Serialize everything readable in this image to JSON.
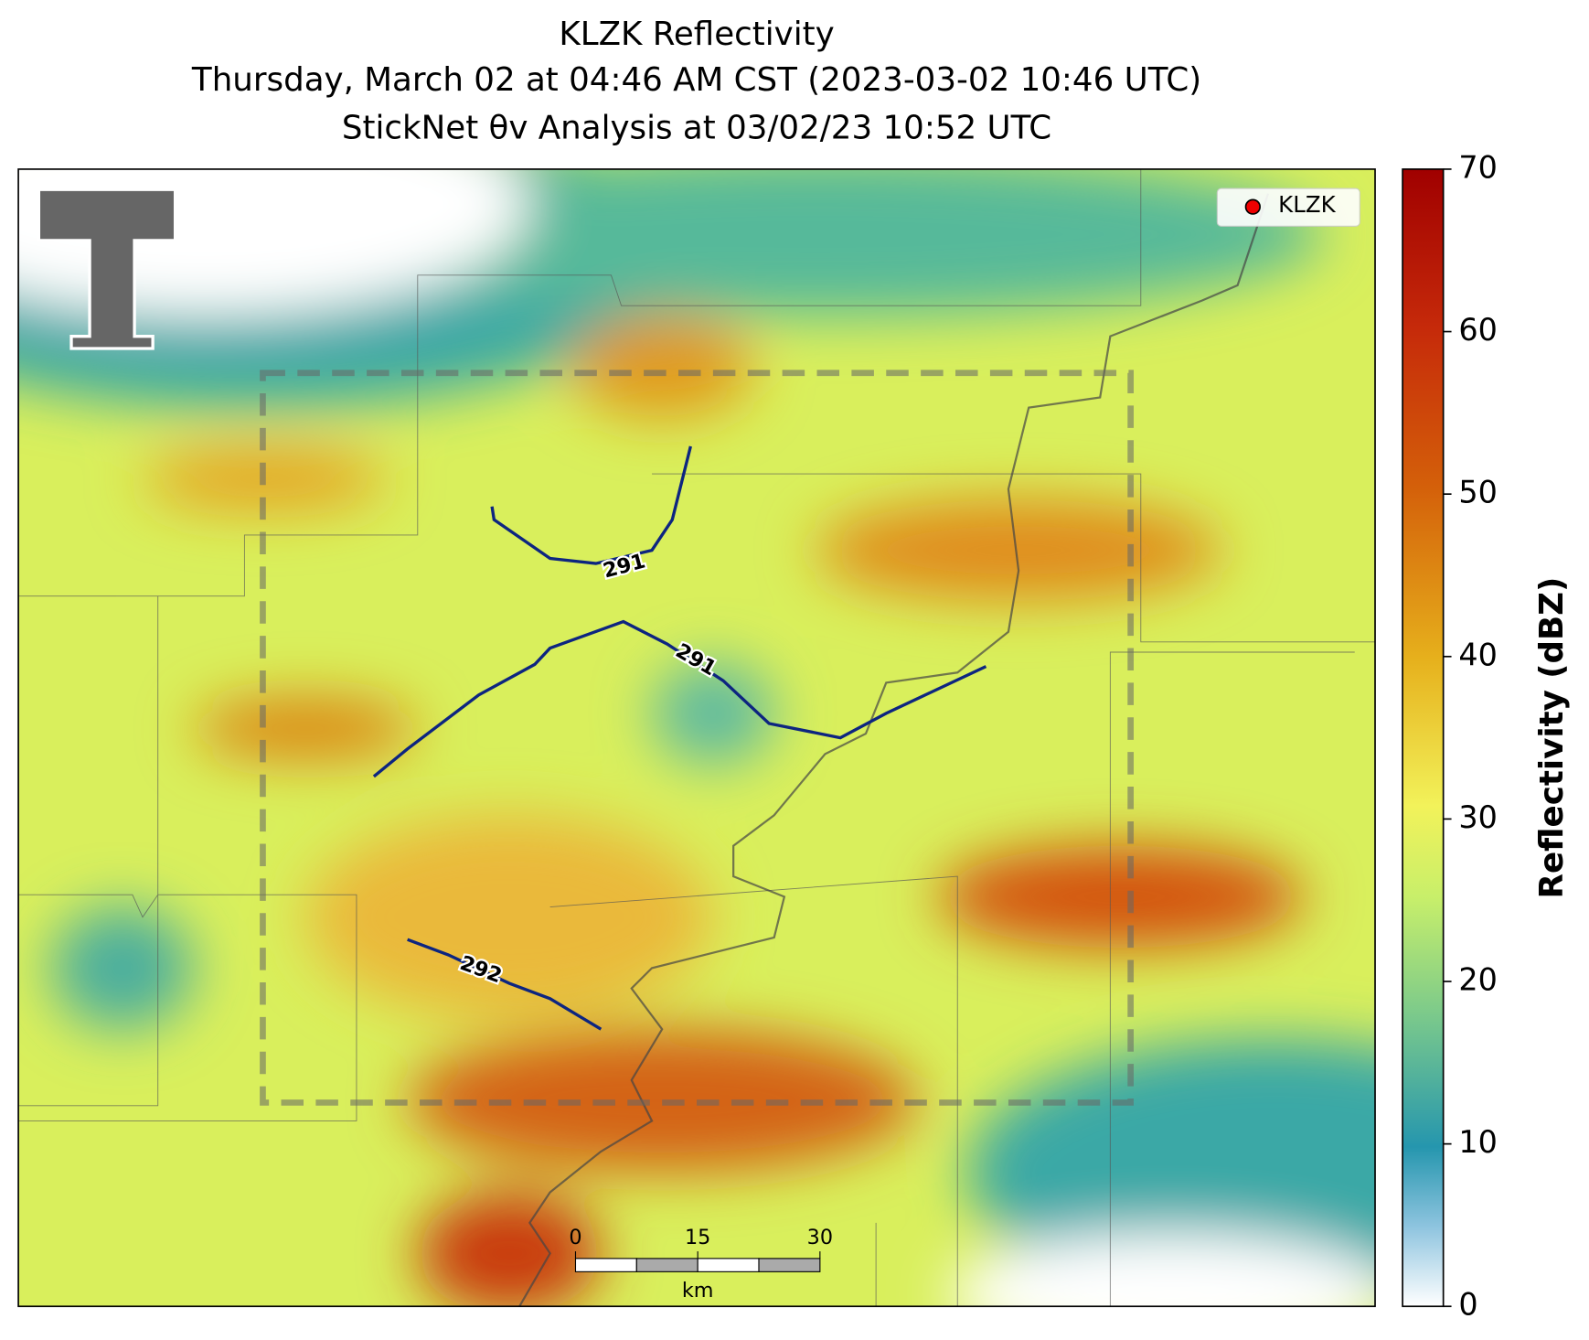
{
  "title": [
    "KLZK Reflectivity",
    "Thursday, March 02 at 04:46 AM CST (2023-03-02 10:46 UTC)",
    "StickNet θv Analysis at 03/02/23 10:52 UTC"
  ],
  "legend": [
    "KLZK"
  ],
  "contours": [
    {
      "label": "291"
    },
    {
      "label": "291"
    },
    {
      "label": "292"
    }
  ],
  "scale_bar": {
    "ticks": [
      0,
      15,
      30
    ],
    "unit": "km"
  },
  "colorbar": {
    "label": "Reflectivity (dBZ)",
    "ylim": [
      0,
      70
    ],
    "ticks": [
      0,
      10,
      20,
      30,
      40,
      50,
      60,
      70
    ]
  }
}
